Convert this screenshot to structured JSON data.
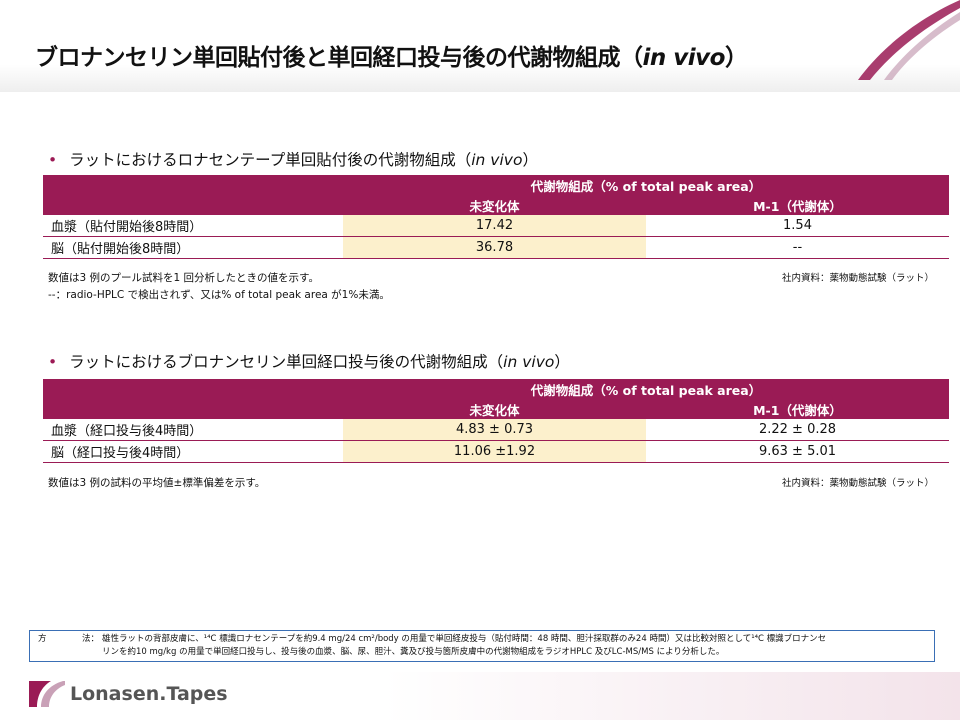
{
  "title": {
    "main": "ブロナンセリン単回貼付後と単回経口投与後の代謝物組成（",
    "italic": "in vivo",
    "close": "）"
  },
  "section1": {
    "heading_main": "ラットにおけるロナセンテープ単回貼付後の代謝物組成（",
    "heading_italic": "in vivo",
    "heading_close": "）",
    "header_group": "代謝物組成（% of total peak area）",
    "col1": "未変化体",
    "col2": "M-1（代謝体）",
    "rows": [
      {
        "label": "血漿（貼付開始後8時間）",
        "v1": "17.42",
        "v2": "1.54"
      },
      {
        "label": "脳（貼付開始後8時間）",
        "v1": "36.78",
        "v2": "--"
      }
    ],
    "note1": "数値は3 例のプール試料を1 回分析したときの値を示す。",
    "note2": "--：radio-HPLC で検出されず、又は% of total peak area が1%未満。",
    "source": "社内資料：薬物動態試験（ラット）"
  },
  "section2": {
    "heading_main": "ラットにおけるブロナンセリン単回経口投与後の代謝物組成（",
    "heading_italic": "in vivo",
    "heading_close": "）",
    "header_group": "代謝物組成（% of total peak area）",
    "col1": "未変化体",
    "col2": "M-1（代謝体）",
    "rows": [
      {
        "label": "血漿（経口投与後4時間）",
        "v1": "4.83 ± 0.73",
        "v2": "2.22 ± 0.28"
      },
      {
        "label": "脳（経口投与後4時間）",
        "v1": "11.06 ±1.92",
        "v2": "9.63 ± 5.01"
      }
    ],
    "note1": "数値は3 例の試料の平均値±標準偏差を示す。",
    "source": "社内資料：薬物動態試験（ラット）"
  },
  "method": {
    "label_a": "方",
    "label_b": "法：",
    "line1": "雄性ラットの背部皮膚に、¹⁴C 標識ロナセンテープを約9.4 mg/24 cm²/body の用量で単回経皮投与（貼付時間：48 時間、胆汁採取群のみ24 時間）又は比較対照として¹⁴C 標識ブロナンセ",
    "line2": "リンを約10 mg/kg の用量で単回経口投与し、投与後の血漿、脳、尿、胆汁、糞及び投与箇所皮膚中の代謝物組成をラジオHPLC 及びLC-MS/MS により分析した。"
  },
  "footer": {
    "logo_text": "Lonasen.Tapes"
  },
  "colors": {
    "accent": "#9a1b55",
    "highlight": "#fcf0cc",
    "border": "#3a6fb5"
  }
}
